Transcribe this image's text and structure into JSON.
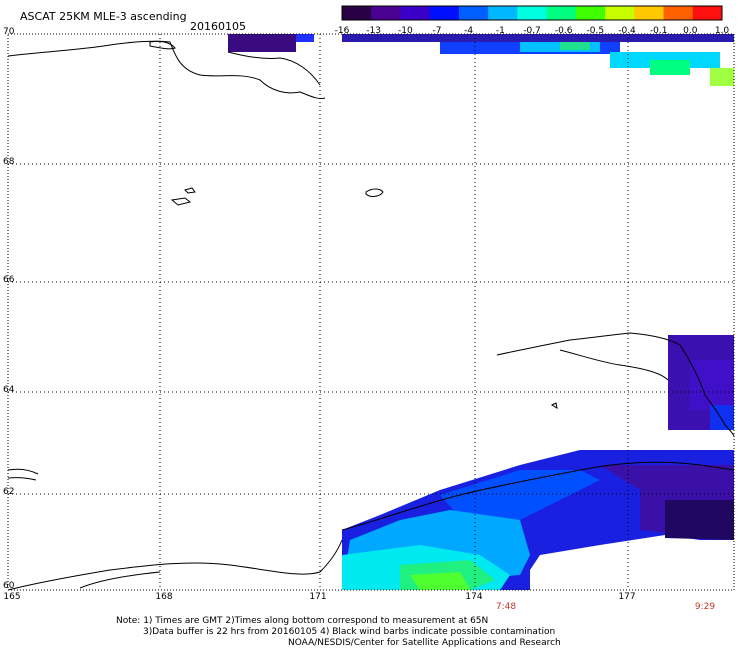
{
  "header": {
    "title": "ASCAT 25KM MLE-3 ascending",
    "date": "20160105"
  },
  "colorbar": {
    "labels": [
      "-16",
      "-13",
      "-10",
      "-7",
      "-4",
      "-1",
      "-0.7",
      "-0.6",
      "-0.5",
      "-0.4",
      "-0.1",
      "0.0",
      "1.0"
    ],
    "colors": [
      "#2a0044",
      "#4a0090",
      "#3a00c8",
      "#0010ff",
      "#0060ff",
      "#00b8ff",
      "#00ffe0",
      "#00ff80",
      "#40ff00",
      "#c8ff00",
      "#ffc800",
      "#ff6000",
      "#ff1010"
    ]
  },
  "axes": {
    "lat_labels": [
      "70",
      "68",
      "66",
      "64",
      "62",
      "60"
    ],
    "lon_labels": [
      "165",
      "168",
      "171",
      "174",
      "177"
    ],
    "times": [
      "7:48",
      "9:29"
    ]
  },
  "notes": {
    "line1": "Note: 1) Times are GMT 2)Times along bottom correspond to measurement at 65N",
    "line2": "3)Data buffer is 22 hrs from 20160105 4) Black wind barbs indicate possible contamination",
    "line3": "NOAA/NESDIS/Center for Satellite Applications and Research"
  }
}
